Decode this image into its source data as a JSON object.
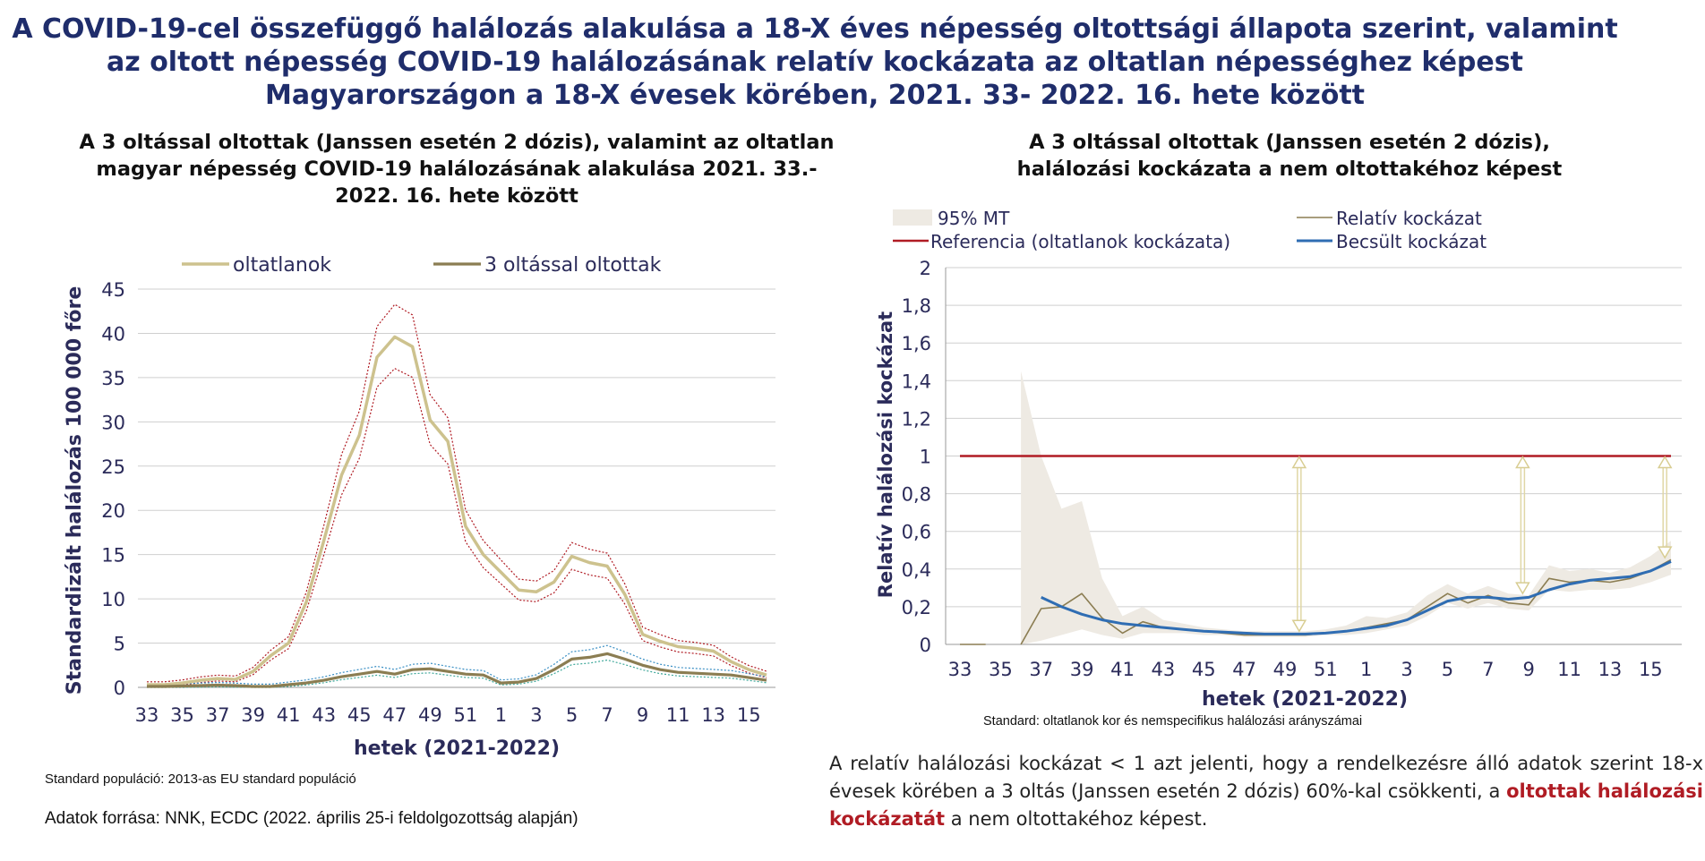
{
  "main_title": [
    "A COVID-19-cel összefüggő halálozás alakulása a 18-X éves népesség oltottsági állapota szerint, valamint",
    "az oltott népesség COVID-19 halálozásának relatív kockázata az oltatlan népességhez képest",
    "Magyarországon a 18-X évesek körében, 2021. 33- 2022. 16. hete között"
  ],
  "left_panel_title": [
    "A 3 oltással oltottak (Janssen esetén 2 dózis), valamint az oltatlan",
    "magyar népesség COVID-19 halálozásának alakulása 2021. 33.-",
    "2022. 16. hete között"
  ],
  "right_panel_title": [
    "A 3 oltással oltottak (Janssen esetén 2 dózis),",
    "halálozási kockázata a nem oltottakéhoz képest"
  ],
  "left_note": "Standard populáció: 2013-as EU standard populáció",
  "source": "Adatok forrása: NNK, ECDC  (2022. április 25-i feldolgozottság alapján)",
  "right_note": "Standard: oltatlanok kor és nemspecifikus halálozási arányszámai",
  "explanation": {
    "before": "A relatív halálozási kockázat < 1 azt jelenti, hogy a rendelkezésre álló adatok szerint 18-x évesek körében a 3 oltás (Janssen esetén 2 dózis) 60%-kal csökkenti, a ",
    "highlight": "oltottak halálozási kockázatát",
    "after": " a nem oltottakéhoz képest."
  },
  "chart_data": [
    {
      "type": "line",
      "xlabel": "hetek (2021-2022)",
      "ylabel": "Standardizált halálozás 100 000 főre",
      "ylim": [
        0,
        45
      ],
      "yticks": [
        0,
        5,
        10,
        15,
        20,
        25,
        30,
        35,
        40,
        45
      ],
      "x": [
        33,
        34,
        35,
        36,
        37,
        38,
        39,
        40,
        41,
        42,
        43,
        44,
        45,
        46,
        47,
        48,
        49,
        50,
        51,
        52,
        1,
        2,
        3,
        4,
        5,
        6,
        7,
        8,
        9,
        10,
        11,
        12,
        13,
        14,
        15,
        16
      ],
      "xtick_labels": [
        "33",
        "35",
        "37",
        "39",
        "41",
        "43",
        "45",
        "47",
        "49",
        "51",
        "1",
        "3",
        "5",
        "7",
        "9",
        "11",
        "13",
        "15"
      ],
      "grid": "horizontal",
      "legend_position": "top",
      "series": [
        {
          "name": "oltatlanok",
          "color": "#cdc28e",
          "values": [
            0.3,
            0.3,
            0.5,
            0.8,
            1.0,
            0.9,
            1.8,
            3.6,
            5.0,
            9.6,
            16.6,
            24.0,
            28.5,
            37.3,
            39.6,
            38.5,
            30.2,
            27.8,
            18.2,
            15.0,
            13.0,
            11.0,
            10.8,
            11.9,
            14.8,
            14.1,
            13.7,
            10.5,
            6.0,
            5.2,
            4.6,
            4.4,
            4.1,
            2.9,
            2.0,
            1.4
          ]
        },
        {
          "name": "3 oltással oltottak",
          "color": "#8b7d52",
          "values": [
            0.1,
            0.1,
            0.15,
            0.2,
            0.25,
            0.2,
            0.1,
            0.1,
            0.3,
            0.5,
            0.8,
            1.2,
            1.5,
            1.8,
            1.5,
            2.0,
            2.1,
            1.8,
            1.5,
            1.4,
            0.5,
            0.6,
            1.0,
            2.0,
            3.2,
            3.4,
            3.8,
            3.2,
            2.5,
            2.0,
            1.7,
            1.6,
            1.5,
            1.4,
            1.1,
            0.8
          ]
        }
      ]
    },
    {
      "type": "line",
      "xlabel": "hetek (2021-2022)",
      "ylabel": "Relatív halálozási kockázat",
      "ylim": [
        0,
        2
      ],
      "yticks": [
        "0",
        "0,2",
        "0,4",
        "0,6",
        "0,8",
        "1",
        "1,2",
        "1,4",
        "1,6",
        "1,8",
        "2"
      ],
      "x": [
        33,
        34,
        35,
        36,
        37,
        38,
        39,
        40,
        41,
        42,
        43,
        44,
        45,
        46,
        47,
        48,
        49,
        50,
        51,
        52,
        1,
        2,
        3,
        4,
        5,
        6,
        7,
        8,
        9,
        10,
        11,
        12,
        13,
        14,
        15,
        16
      ],
      "xtick_labels": [
        "33",
        "35",
        "37",
        "39",
        "41",
        "43",
        "45",
        "47",
        "49",
        "51",
        "1",
        "3",
        "5",
        "7",
        "9",
        "11",
        "13",
        "15"
      ],
      "grid": "horizontal",
      "legend_position": "top",
      "series": [
        {
          "name": "95% MT",
          "color": "#eeeae3"
        },
        {
          "name": "Relatív kockázat",
          "color": "#8b7d52",
          "values": [
            null,
            null,
            null,
            0.0,
            0.19,
            0.2,
            0.27,
            0.14,
            0.06,
            0.12,
            0.09,
            0.08,
            0.07,
            0.06,
            0.05,
            0.05,
            0.05,
            0.05,
            0.06,
            0.07,
            0.09,
            0.11,
            0.13,
            0.2,
            0.27,
            0.22,
            0.26,
            0.22,
            0.21,
            0.35,
            0.33,
            0.34,
            0.33,
            0.35,
            0.39,
            0.45
          ]
        },
        {
          "name": "Referencia (oltatlanok kockázata)",
          "color": "#b01c24",
          "values": [
            1,
            1,
            1,
            1,
            1,
            1,
            1,
            1,
            1,
            1,
            1,
            1,
            1,
            1,
            1,
            1,
            1,
            1,
            1,
            1,
            1,
            1,
            1,
            1,
            1,
            1,
            1,
            1,
            1,
            1,
            1,
            1,
            1,
            1,
            1,
            1
          ]
        },
        {
          "name": "Becsült kockázat",
          "color": "#2f6db3",
          "values": [
            null,
            null,
            null,
            null,
            0.25,
            0.2,
            0.16,
            0.13,
            0.11,
            0.1,
            0.09,
            0.08,
            0.07,
            0.065,
            0.06,
            0.055,
            0.055,
            0.055,
            0.06,
            0.07,
            0.085,
            0.1,
            0.13,
            0.18,
            0.23,
            0.25,
            0.25,
            0.24,
            0.25,
            0.29,
            0.32,
            0.34,
            0.35,
            0.36,
            0.39,
            0.44
          ]
        }
      ]
    }
  ]
}
